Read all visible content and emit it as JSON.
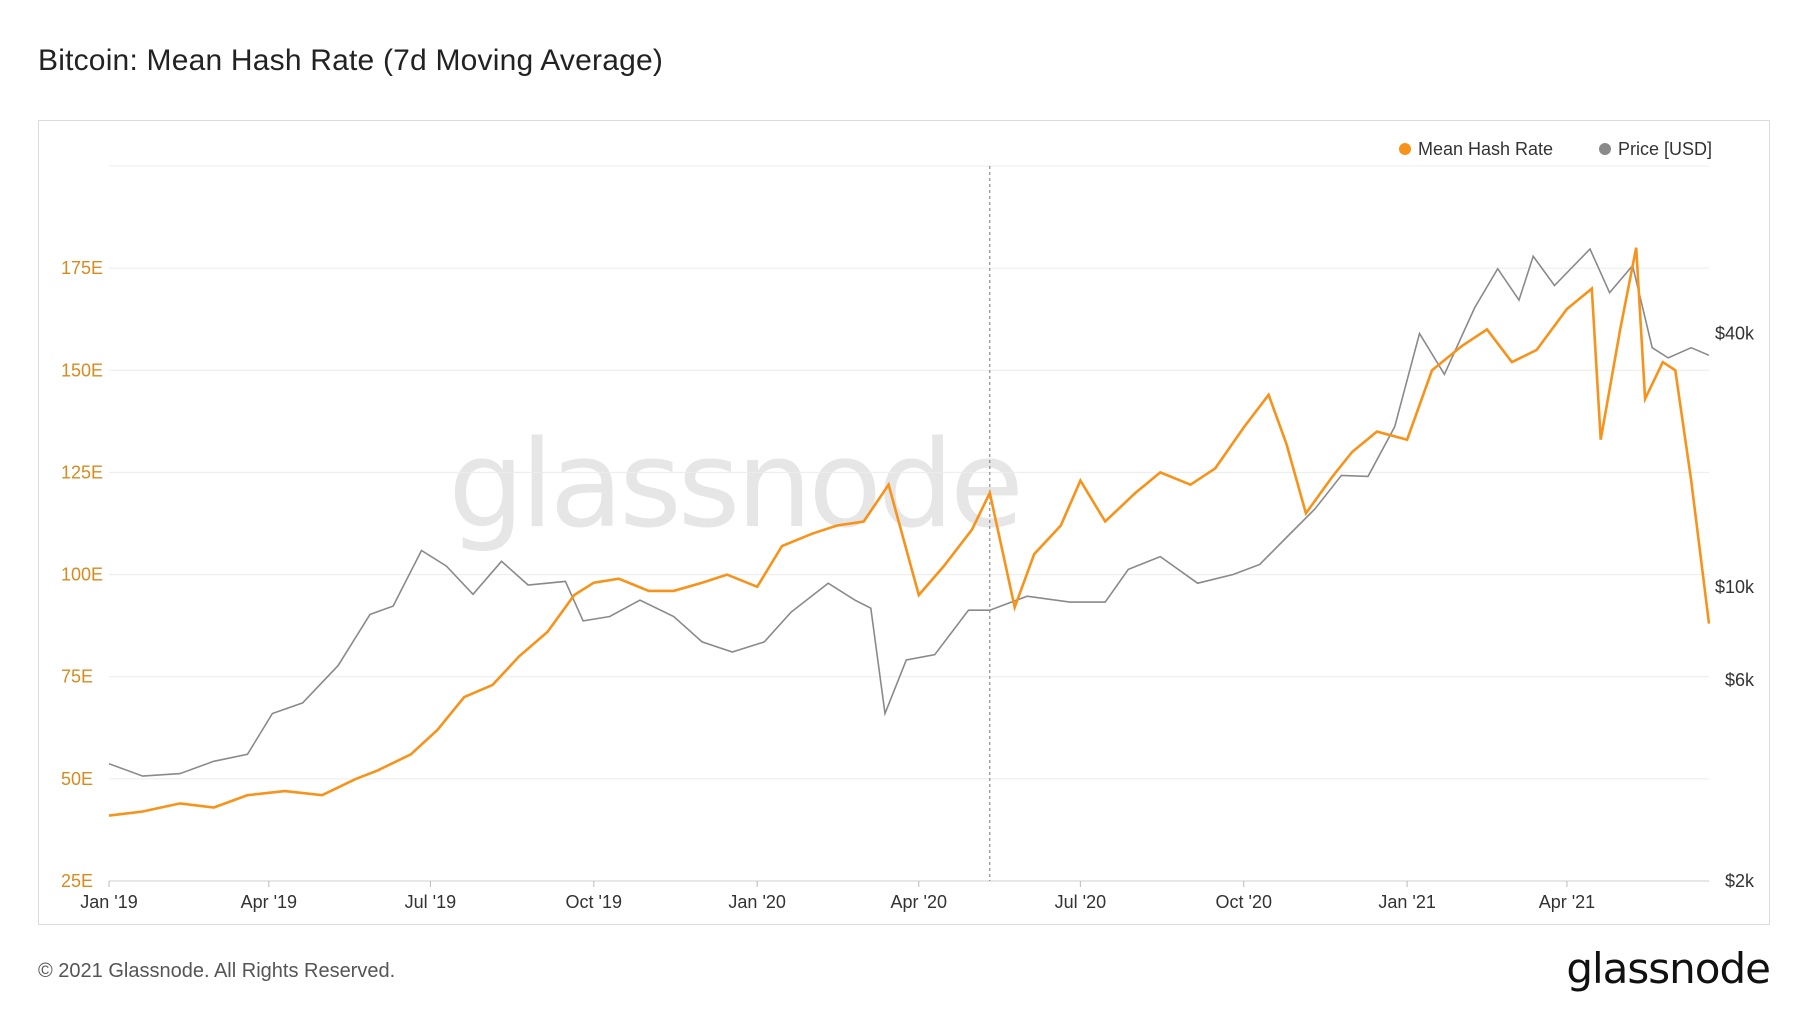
{
  "header": {
    "title": "Bitcoin: Mean Hash Rate (7d Moving Average)"
  },
  "footer": {
    "copyright": "© 2021 Glassnode. All Rights Reserved.",
    "logo": "glassnode"
  },
  "watermark": "glassnode",
  "colors": {
    "hash": "#f7931a",
    "price": "#8a8a8a",
    "grid": "#ececec",
    "hash_axis": "#d98a1e"
  },
  "chart_data": {
    "type": "line",
    "title": "Bitcoin: Mean Hash Rate (7d Moving Average)",
    "legend": {
      "placement": "top-right",
      "entries": [
        "Mean Hash Rate",
        "Price [USD]"
      ]
    },
    "x_ticks": [
      "Jan '19",
      "Apr '19",
      "Jul '19",
      "Oct '19",
      "Jan '20",
      "Apr '20",
      "Jul '20",
      "Oct '20",
      "Jan '21",
      "Apr '21"
    ],
    "xlim": [
      "2019-01-01",
      "2021-06-20"
    ],
    "left_axis": {
      "ticks": [
        "25E",
        "50E",
        "75E",
        "100E",
        "125E",
        "150E",
        "175E"
      ],
      "ylim": [
        25,
        200
      ],
      "unit": "EH/s"
    },
    "right_axis": {
      "ticks": [
        "$2k",
        "$6k",
        "$10k",
        "$40k"
      ],
      "scale": "log",
      "ylim": [
        2000,
        100000
      ]
    },
    "marker_line_date": "2020-05-11",
    "series": [
      {
        "name": "Mean Hash Rate",
        "axis": "left",
        "x": [
          "2019-01-01",
          "2019-01-20",
          "2019-02-10",
          "2019-03-01",
          "2019-03-20",
          "2019-04-10",
          "2019-05-01",
          "2019-05-20",
          "2019-06-01",
          "2019-06-20",
          "2019-07-05",
          "2019-07-20",
          "2019-08-05",
          "2019-08-20",
          "2019-09-05",
          "2019-09-20",
          "2019-10-01",
          "2019-10-15",
          "2019-11-01",
          "2019-11-15",
          "2019-12-01",
          "2019-12-15",
          "2020-01-01",
          "2020-01-15",
          "2020-02-01",
          "2020-02-15",
          "2020-03-01",
          "2020-03-15",
          "2020-04-01",
          "2020-04-15",
          "2020-05-01",
          "2020-05-11",
          "2020-05-25",
          "2020-06-05",
          "2020-06-20",
          "2020-07-01",
          "2020-07-15",
          "2020-08-01",
          "2020-08-15",
          "2020-09-01",
          "2020-09-15",
          "2020-10-01",
          "2020-10-15",
          "2020-10-25",
          "2020-11-05",
          "2020-11-20",
          "2020-12-01",
          "2020-12-15",
          "2021-01-01",
          "2021-01-15",
          "2021-02-01",
          "2021-02-15",
          "2021-03-01",
          "2021-03-15",
          "2021-04-01",
          "2021-04-15",
          "2021-04-20",
          "2021-05-01",
          "2021-05-10",
          "2021-05-15",
          "2021-05-25",
          "2021-06-01",
          "2021-06-10",
          "2021-06-20"
        ],
        "values": [
          41,
          42,
          44,
          43,
          46,
          47,
          46,
          50,
          52,
          56,
          62,
          70,
          73,
          80,
          86,
          95,
          98,
          99,
          96,
          96,
          98,
          100,
          97,
          107,
          110,
          112,
          113,
          122,
          95,
          102,
          111,
          120,
          92,
          105,
          112,
          123,
          113,
          120,
          125,
          122,
          126,
          136,
          144,
          132,
          115,
          124,
          130,
          135,
          133,
          150,
          156,
          160,
          152,
          155,
          165,
          170,
          133,
          160,
          180,
          143,
          152,
          150,
          123,
          88
        ]
      },
      {
        "name": "Price [USD]",
        "axis": "right",
        "x": [
          "2019-01-01",
          "2019-01-20",
          "2019-02-10",
          "2019-03-01",
          "2019-03-20",
          "2019-04-03",
          "2019-04-20",
          "2019-05-10",
          "2019-05-28",
          "2019-06-10",
          "2019-06-26",
          "2019-07-10",
          "2019-07-25",
          "2019-08-10",
          "2019-08-25",
          "2019-09-15",
          "2019-09-25",
          "2019-10-10",
          "2019-10-27",
          "2019-11-15",
          "2019-12-01",
          "2019-12-18",
          "2020-01-05",
          "2020-01-20",
          "2020-02-10",
          "2020-02-25",
          "2020-03-05",
          "2020-03-13",
          "2020-03-25",
          "2020-04-10",
          "2020-04-29",
          "2020-05-11",
          "2020-06-01",
          "2020-06-25",
          "2020-07-15",
          "2020-07-28",
          "2020-08-15",
          "2020-09-05",
          "2020-09-25",
          "2020-10-10",
          "2020-10-25",
          "2020-11-10",
          "2020-11-25",
          "2020-12-10",
          "2020-12-25",
          "2021-01-08",
          "2021-01-22",
          "2021-02-08",
          "2021-02-21",
          "2021-03-05",
          "2021-03-13",
          "2021-03-25",
          "2021-04-14",
          "2021-04-25",
          "2021-05-08",
          "2021-05-19",
          "2021-05-28",
          "2021-06-10",
          "2021-06-20"
        ],
        "values": [
          3800,
          3550,
          3600,
          3850,
          4000,
          5000,
          5300,
          6500,
          8600,
          9000,
          12200,
          11200,
          9600,
          11500,
          10100,
          10300,
          8300,
          8500,
          9300,
          8500,
          7400,
          7000,
          7400,
          8700,
          10200,
          9300,
          8900,
          5000,
          6700,
          6900,
          8800,
          8800,
          9500,
          9200,
          9200,
          11000,
          11800,
          10200,
          10700,
          11300,
          13100,
          15300,
          18400,
          18300,
          24000,
          40000,
          32000,
          46000,
          57000,
          48000,
          61000,
          52000,
          63500,
          50000,
          58000,
          37000,
          35000,
          37000,
          35500
        ]
      }
    ]
  }
}
